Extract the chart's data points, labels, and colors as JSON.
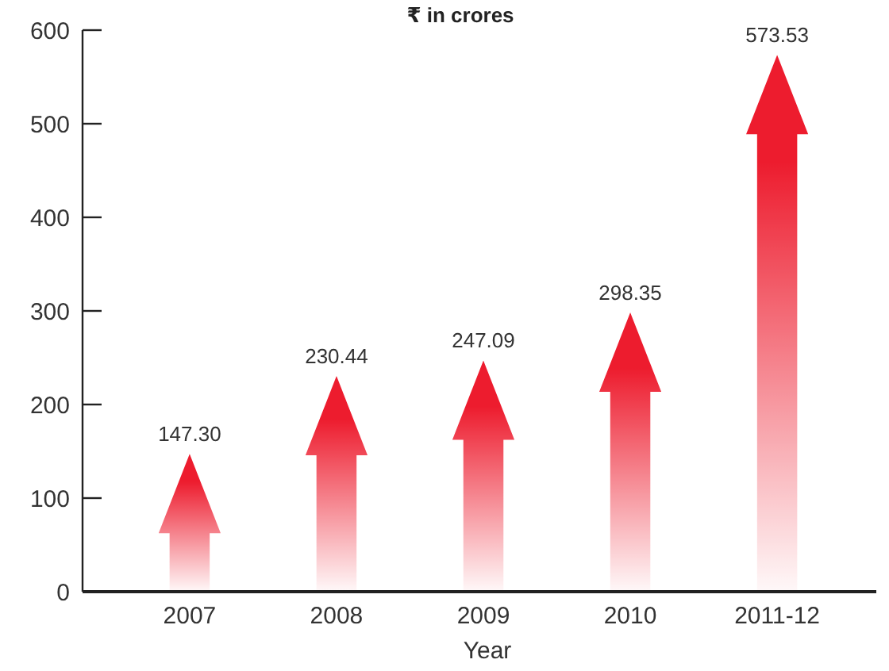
{
  "chart_data": {
    "type": "bar",
    "subtitle": "₹ in crores",
    "xlabel": "Year",
    "categories": [
      "2007",
      "2008",
      "2009",
      "2010",
      "2011-12"
    ],
    "values": [
      147.3,
      230.44,
      247.09,
      298.35,
      573.53
    ],
    "value_labels": [
      "147.30",
      "230.44",
      "247.09",
      "298.35",
      "573.53"
    ],
    "color": "#ed1c2e",
    "ylim": [
      0,
      600
    ],
    "yticks": [
      0,
      100,
      200,
      300,
      400,
      500,
      600
    ],
    "grid": false
  }
}
